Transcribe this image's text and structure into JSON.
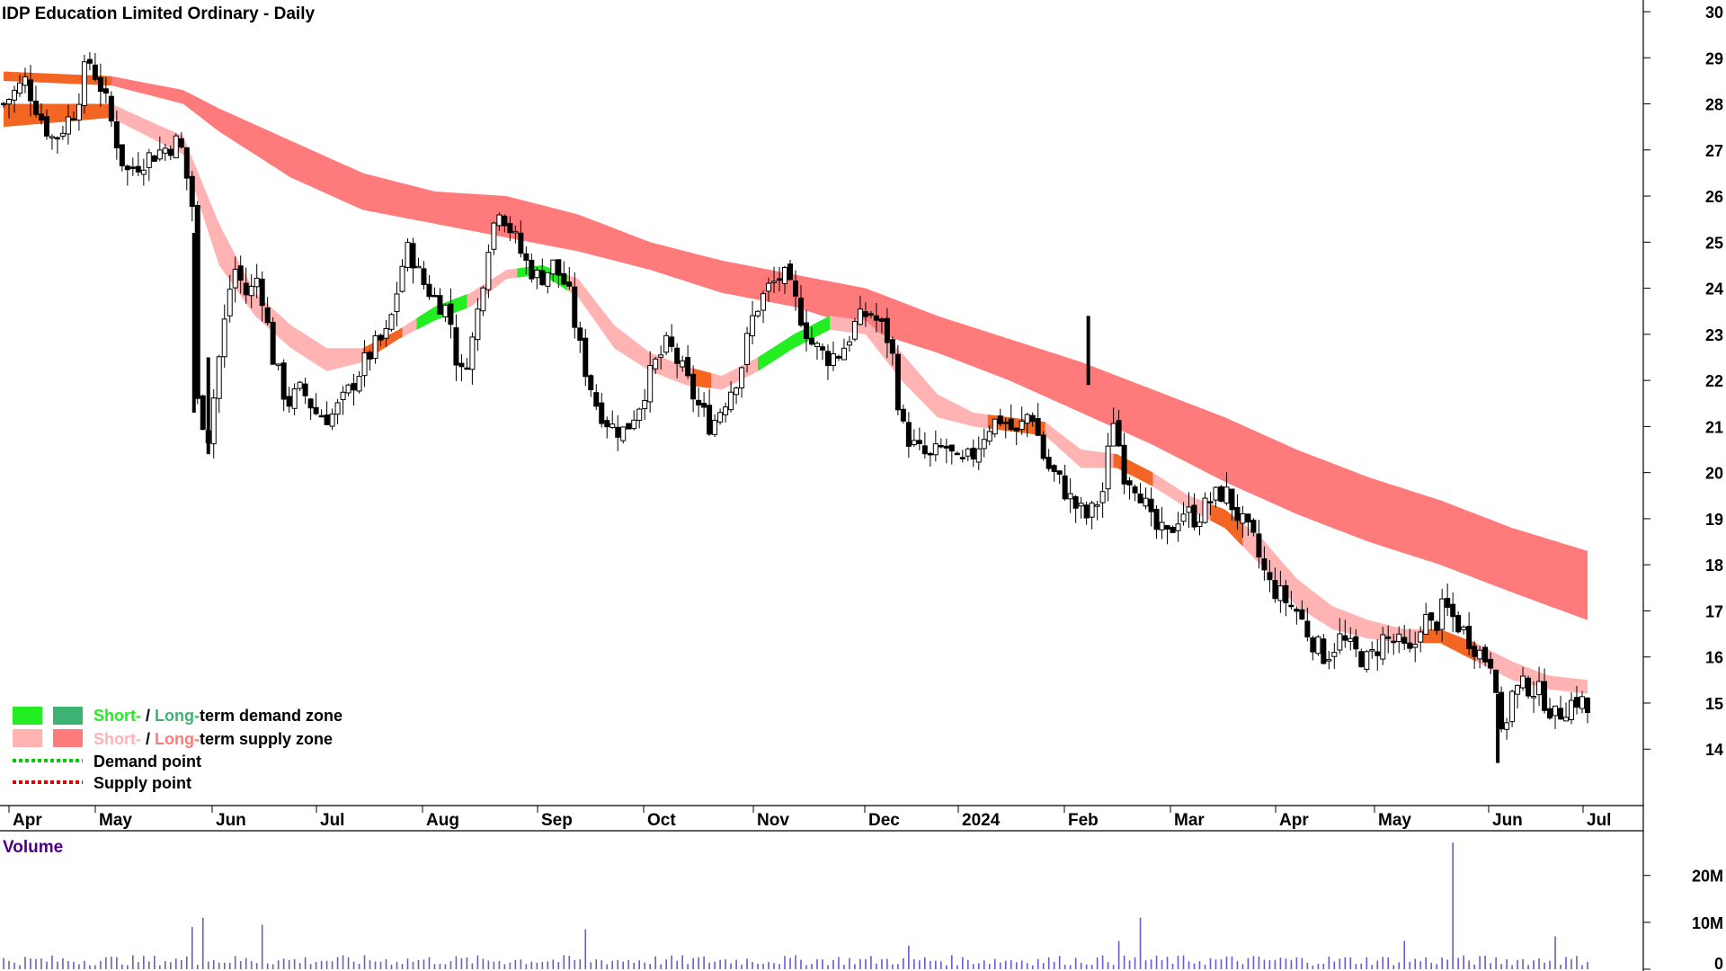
{
  "title": "IDP Education Limited Ordinary - Daily",
  "volume_label": "Volume",
  "legend": {
    "demand_short": "Short-",
    "demand_sep": " / ",
    "demand_long": "Long-",
    "demand_rest": "term demand zone",
    "supply_short": "Short-",
    "supply_sep": " / ",
    "supply_long": "Long-",
    "supply_rest": "term supply zone",
    "demand_point": "Demand point",
    "supply_point": "Supply point"
  },
  "colors": {
    "short_demand": "#22ee22",
    "long_demand": "#3cb371",
    "short_supply": "#ffb3b3",
    "long_supply": "#ff7b7b",
    "overlap": "#f26522",
    "demand_point": "#00cc00",
    "supply_point": "#dd0000",
    "volume_bar": "#6a5acd",
    "volume_label": "#4b0082"
  },
  "chart_data": {
    "type": "candlestick",
    "title": "IDP Education Limited Ordinary - Daily",
    "y_axis": {
      "ticks": [
        14,
        15,
        16,
        17,
        18,
        19,
        20,
        21,
        22,
        23,
        24,
        25,
        26,
        27,
        28,
        29,
        30
      ],
      "range": [
        13.4,
        30
      ]
    },
    "x_axis": {
      "tick_labels": [
        "Apr",
        "May",
        "Jun",
        "Jul",
        "Aug",
        "Sep",
        "Oct",
        "Nov",
        "Dec",
        "2024",
        "Feb",
        "Mar",
        "Apr",
        "May",
        "Jun",
        "Jul"
      ]
    },
    "price_path": [
      [
        0,
        28.0
      ],
      [
        12,
        28.5
      ],
      [
        22,
        27.6
      ],
      [
        28,
        27.2
      ],
      [
        40,
        27.9
      ],
      [
        47,
        29.0
      ],
      [
        55,
        28.3
      ],
      [
        60,
        27.6
      ],
      [
        68,
        26.5
      ],
      [
        78,
        26.8
      ],
      [
        88,
        27.0
      ],
      [
        98,
        27.2
      ],
      [
        106,
        25.6
      ],
      [
        108,
        21.5
      ],
      [
        114,
        20.8
      ],
      [
        120,
        22.5
      ],
      [
        128,
        24.5
      ],
      [
        136,
        23.8
      ],
      [
        142,
        24.3
      ],
      [
        150,
        22.5
      ],
      [
        158,
        21.5
      ],
      [
        166,
        21.8
      ],
      [
        174,
        21.3
      ],
      [
        182,
        21.2
      ],
      [
        190,
        21.6
      ],
      [
        198,
        22.2
      ],
      [
        206,
        22.7
      ],
      [
        214,
        23.0
      ],
      [
        222,
        24.5
      ],
      [
        226,
        24.9
      ],
      [
        232,
        24.2
      ],
      [
        240,
        23.8
      ],
      [
        248,
        23.5
      ],
      [
        254,
        22.0
      ],
      [
        262,
        23.0
      ],
      [
        270,
        25.0
      ],
      [
        276,
        25.8
      ],
      [
        282,
        25.3
      ],
      [
        290,
        24.6
      ],
      [
        298,
        24.2
      ],
      [
        306,
        24.5
      ],
      [
        314,
        24.0
      ],
      [
        322,
        22.5
      ],
      [
        330,
        21.5
      ],
      [
        338,
        21.0
      ],
      [
        346,
        20.9
      ],
      [
        354,
        21.5
      ],
      [
        362,
        22.3
      ],
      [
        370,
        22.8
      ],
      [
        378,
        22.2
      ],
      [
        386,
        21.5
      ],
      [
        394,
        21.0
      ],
      [
        402,
        21.6
      ],
      [
        410,
        22.2
      ],
      [
        418,
        23.5
      ],
      [
        426,
        24.0
      ],
      [
        434,
        24.3
      ],
      [
        442,
        23.6
      ],
      [
        450,
        22.8
      ],
      [
        458,
        22.5
      ],
      [
        466,
        22.6
      ],
      [
        474,
        23.2
      ],
      [
        482,
        23.5
      ],
      [
        488,
        23.2
      ],
      [
        494,
        22.8
      ],
      [
        500,
        21.0
      ],
      [
        508,
        20.5
      ],
      [
        516,
        20.3
      ],
      [
        524,
        20.6
      ],
      [
        532,
        20.1
      ],
      [
        540,
        20.4
      ],
      [
        548,
        21.0
      ],
      [
        556,
        21.2
      ],
      [
        564,
        20.8
      ],
      [
        572,
        21.4
      ],
      [
        580,
        20.2
      ],
      [
        588,
        19.8
      ],
      [
        596,
        19.3
      ],
      [
        604,
        19.0
      ],
      [
        612,
        19.6
      ],
      [
        618,
        21.2
      ],
      [
        624,
        20.0
      ],
      [
        632,
        19.7
      ],
      [
        640,
        18.8
      ],
      [
        648,
        18.6
      ],
      [
        656,
        19.2
      ],
      [
        664,
        19.0
      ],
      [
        672,
        19.4
      ],
      [
        680,
        19.6
      ],
      [
        688,
        19.0
      ],
      [
        696,
        18.5
      ],
      [
        704,
        17.6
      ],
      [
        712,
        17.3
      ],
      [
        720,
        17.0
      ],
      [
        728,
        16.4
      ],
      [
        736,
        16.0
      ],
      [
        744,
        16.4
      ],
      [
        752,
        16.1
      ],
      [
        760,
        15.9
      ],
      [
        768,
        16.4
      ],
      [
        776,
        16.3
      ],
      [
        784,
        16.0
      ],
      [
        790,
        16.9
      ],
      [
        796,
        16.6
      ],
      [
        802,
        17.1
      ],
      [
        810,
        16.7
      ],
      [
        816,
        16.4
      ],
      [
        824,
        16.0
      ],
      [
        830,
        15.9
      ],
      [
        834,
        14.2
      ],
      [
        840,
        15.2
      ],
      [
        848,
        15.4
      ],
      [
        856,
        15.2
      ],
      [
        864,
        14.7
      ],
      [
        872,
        15.0
      ],
      [
        878,
        15.1
      ],
      [
        882,
        14.8
      ]
    ],
    "series": [
      {
        "name": "Short-term supply zone",
        "upper": [
          [
            0,
            28.0
          ],
          [
            60,
            28.0
          ],
          [
            100,
            27.3
          ],
          [
            120,
            25.4
          ],
          [
            140,
            23.9
          ],
          [
            160,
            23.2
          ],
          [
            180,
            22.7
          ],
          [
            200,
            22.7
          ],
          [
            220,
            23.1
          ],
          [
            240,
            23.6
          ],
          [
            260,
            23.9
          ],
          [
            280,
            24.4
          ],
          [
            300,
            24.5
          ],
          [
            320,
            24.2
          ],
          [
            340,
            23.2
          ],
          [
            360,
            22.6
          ],
          [
            380,
            22.3
          ],
          [
            400,
            22.1
          ],
          [
            420,
            22.5
          ],
          [
            440,
            23.0
          ],
          [
            460,
            23.4
          ],
          [
            480,
            23.3
          ],
          [
            500,
            22.6
          ],
          [
            520,
            21.7
          ],
          [
            540,
            21.3
          ],
          [
            560,
            21.2
          ],
          [
            580,
            21.1
          ],
          [
            600,
            20.5
          ],
          [
            620,
            20.4
          ],
          [
            640,
            20.0
          ],
          [
            660,
            19.5
          ],
          [
            680,
            19.2
          ],
          [
            700,
            18.6
          ],
          [
            720,
            17.7
          ],
          [
            740,
            17.1
          ],
          [
            760,
            16.8
          ],
          [
            780,
            16.6
          ],
          [
            800,
            16.6
          ],
          [
            820,
            16.3
          ],
          [
            840,
            15.9
          ],
          [
            860,
            15.6
          ],
          [
            882,
            15.5
          ]
        ],
        "lower": [
          [
            0,
            27.5
          ],
          [
            60,
            27.7
          ],
          [
            100,
            26.9
          ],
          [
            120,
            24.5
          ],
          [
            140,
            23.4
          ],
          [
            160,
            22.7
          ],
          [
            180,
            22.2
          ],
          [
            200,
            22.4
          ],
          [
            220,
            22.9
          ],
          [
            240,
            23.3
          ],
          [
            260,
            23.6
          ],
          [
            280,
            24.2
          ],
          [
            300,
            24.3
          ],
          [
            320,
            23.8
          ],
          [
            340,
            22.7
          ],
          [
            360,
            22.2
          ],
          [
            380,
            21.9
          ],
          [
            400,
            21.8
          ],
          [
            420,
            22.2
          ],
          [
            440,
            22.7
          ],
          [
            460,
            23.1
          ],
          [
            480,
            23.0
          ],
          [
            500,
            22.0
          ],
          [
            520,
            21.2
          ],
          [
            540,
            21.0
          ],
          [
            560,
            20.9
          ],
          [
            580,
            20.8
          ],
          [
            600,
            20.1
          ],
          [
            620,
            20.1
          ],
          [
            640,
            19.7
          ],
          [
            660,
            19.2
          ],
          [
            680,
            18.8
          ],
          [
            700,
            18.0
          ],
          [
            720,
            17.1
          ],
          [
            740,
            16.6
          ],
          [
            760,
            16.4
          ],
          [
            780,
            16.3
          ],
          [
            800,
            16.3
          ],
          [
            820,
            15.9
          ],
          [
            840,
            15.5
          ],
          [
            860,
            15.3
          ],
          [
            882,
            15.2
          ]
        ]
      },
      {
        "name": "Long-term supply zone",
        "upper": [
          [
            0,
            28.7
          ],
          [
            60,
            28.6
          ],
          [
            100,
            28.3
          ],
          [
            120,
            27.9
          ],
          [
            160,
            27.2
          ],
          [
            200,
            26.5
          ],
          [
            240,
            26.1
          ],
          [
            280,
            26.0
          ],
          [
            320,
            25.6
          ],
          [
            360,
            25.0
          ],
          [
            400,
            24.6
          ],
          [
            440,
            24.3
          ],
          [
            480,
            24.0
          ],
          [
            520,
            23.4
          ],
          [
            560,
            22.9
          ],
          [
            600,
            22.4
          ],
          [
            640,
            21.8
          ],
          [
            680,
            21.2
          ],
          [
            720,
            20.5
          ],
          [
            760,
            19.9
          ],
          [
            800,
            19.4
          ],
          [
            840,
            18.8
          ],
          [
            882,
            18.3
          ]
        ],
        "lower": [
          [
            0,
            28.5
          ],
          [
            60,
            28.4
          ],
          [
            100,
            28.0
          ],
          [
            120,
            27.4
          ],
          [
            160,
            26.4
          ],
          [
            200,
            25.7
          ],
          [
            240,
            25.4
          ],
          [
            280,
            25.1
          ],
          [
            320,
            24.8
          ],
          [
            360,
            24.4
          ],
          [
            400,
            23.9
          ],
          [
            440,
            23.6
          ],
          [
            480,
            23.1
          ],
          [
            520,
            22.6
          ],
          [
            560,
            22.0
          ],
          [
            600,
            21.3
          ],
          [
            640,
            20.6
          ],
          [
            680,
            19.8
          ],
          [
            720,
            19.1
          ],
          [
            760,
            18.5
          ],
          [
            800,
            18.0
          ],
          [
            840,
            17.4
          ],
          [
            882,
            16.8
          ]
        ]
      }
    ],
    "volume": {
      "axis_ticks": [
        "0",
        "10M",
        "20M"
      ],
      "range": [
        0,
        28
      ]
    }
  }
}
